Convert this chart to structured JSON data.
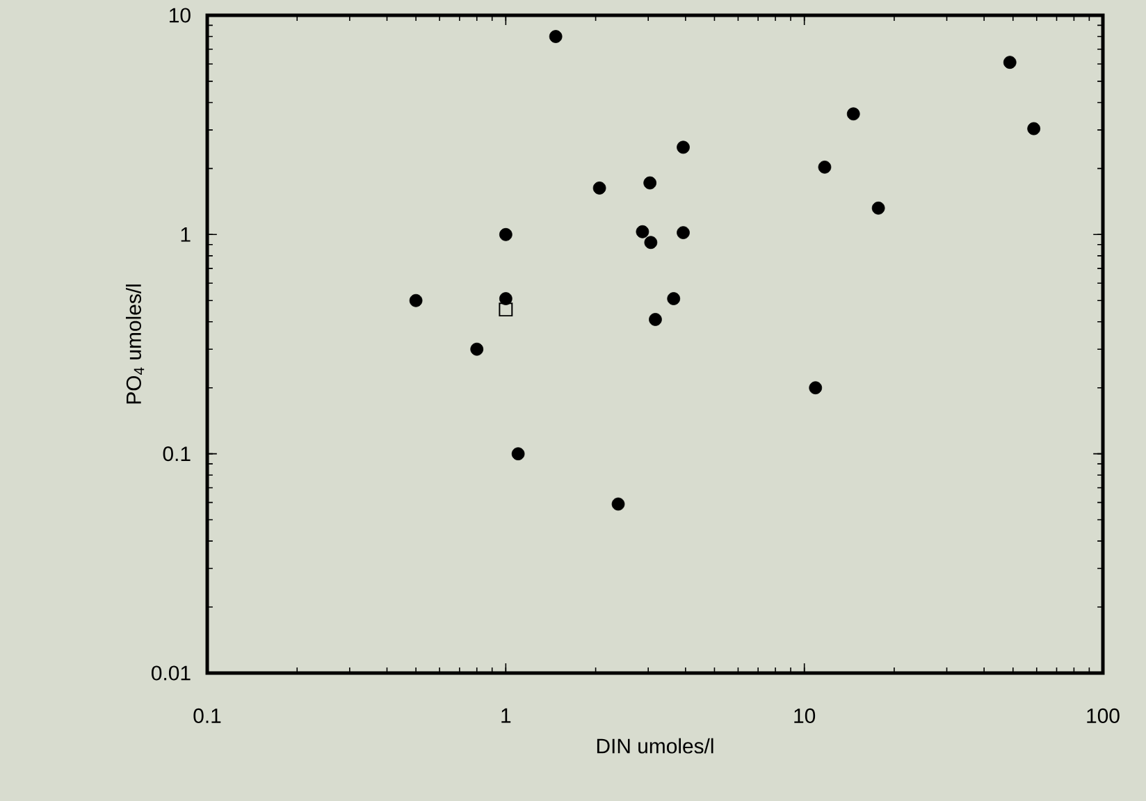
{
  "chart_data": {
    "type": "scatter",
    "xlabel": "DIN umoles/l",
    "ylabel": "PO$_{4}$ umoles/l",
    "log": "xy",
    "xlim": [
      0.1,
      100
    ],
    "ylim": [
      0.01,
      10
    ],
    "xticks": [
      0.1,
      1,
      10,
      100
    ],
    "yticks": [
      0.01,
      0.1,
      1,
      10
    ],
    "series": [
      {
        "color": "#000000",
        "marker": "circle",
        "x": [
          0.5,
          1.0,
          1.0,
          0.8,
          1.47,
          2.06,
          3.04,
          2.87,
          3.06,
          3.17,
          3.93,
          3.93,
          3.65,
          10.9,
          14.6,
          11.7,
          17.7,
          48.8,
          58.7,
          1.1,
          2.38
        ],
        "values": [
          0.5,
          1.0,
          0.51,
          0.3,
          8.0,
          1.63,
          1.72,
          1.03,
          0.92,
          0.41,
          2.5,
          1.02,
          0.51,
          0.2,
          3.55,
          2.03,
          1.32,
          6.1,
          3.04,
          0.1,
          0.059
        ]
      },
      {
        "color": "#000000",
        "marker": "square",
        "x": [
          1.0
        ],
        "values": [
          0.455
        ]
      }
    ]
  }
}
